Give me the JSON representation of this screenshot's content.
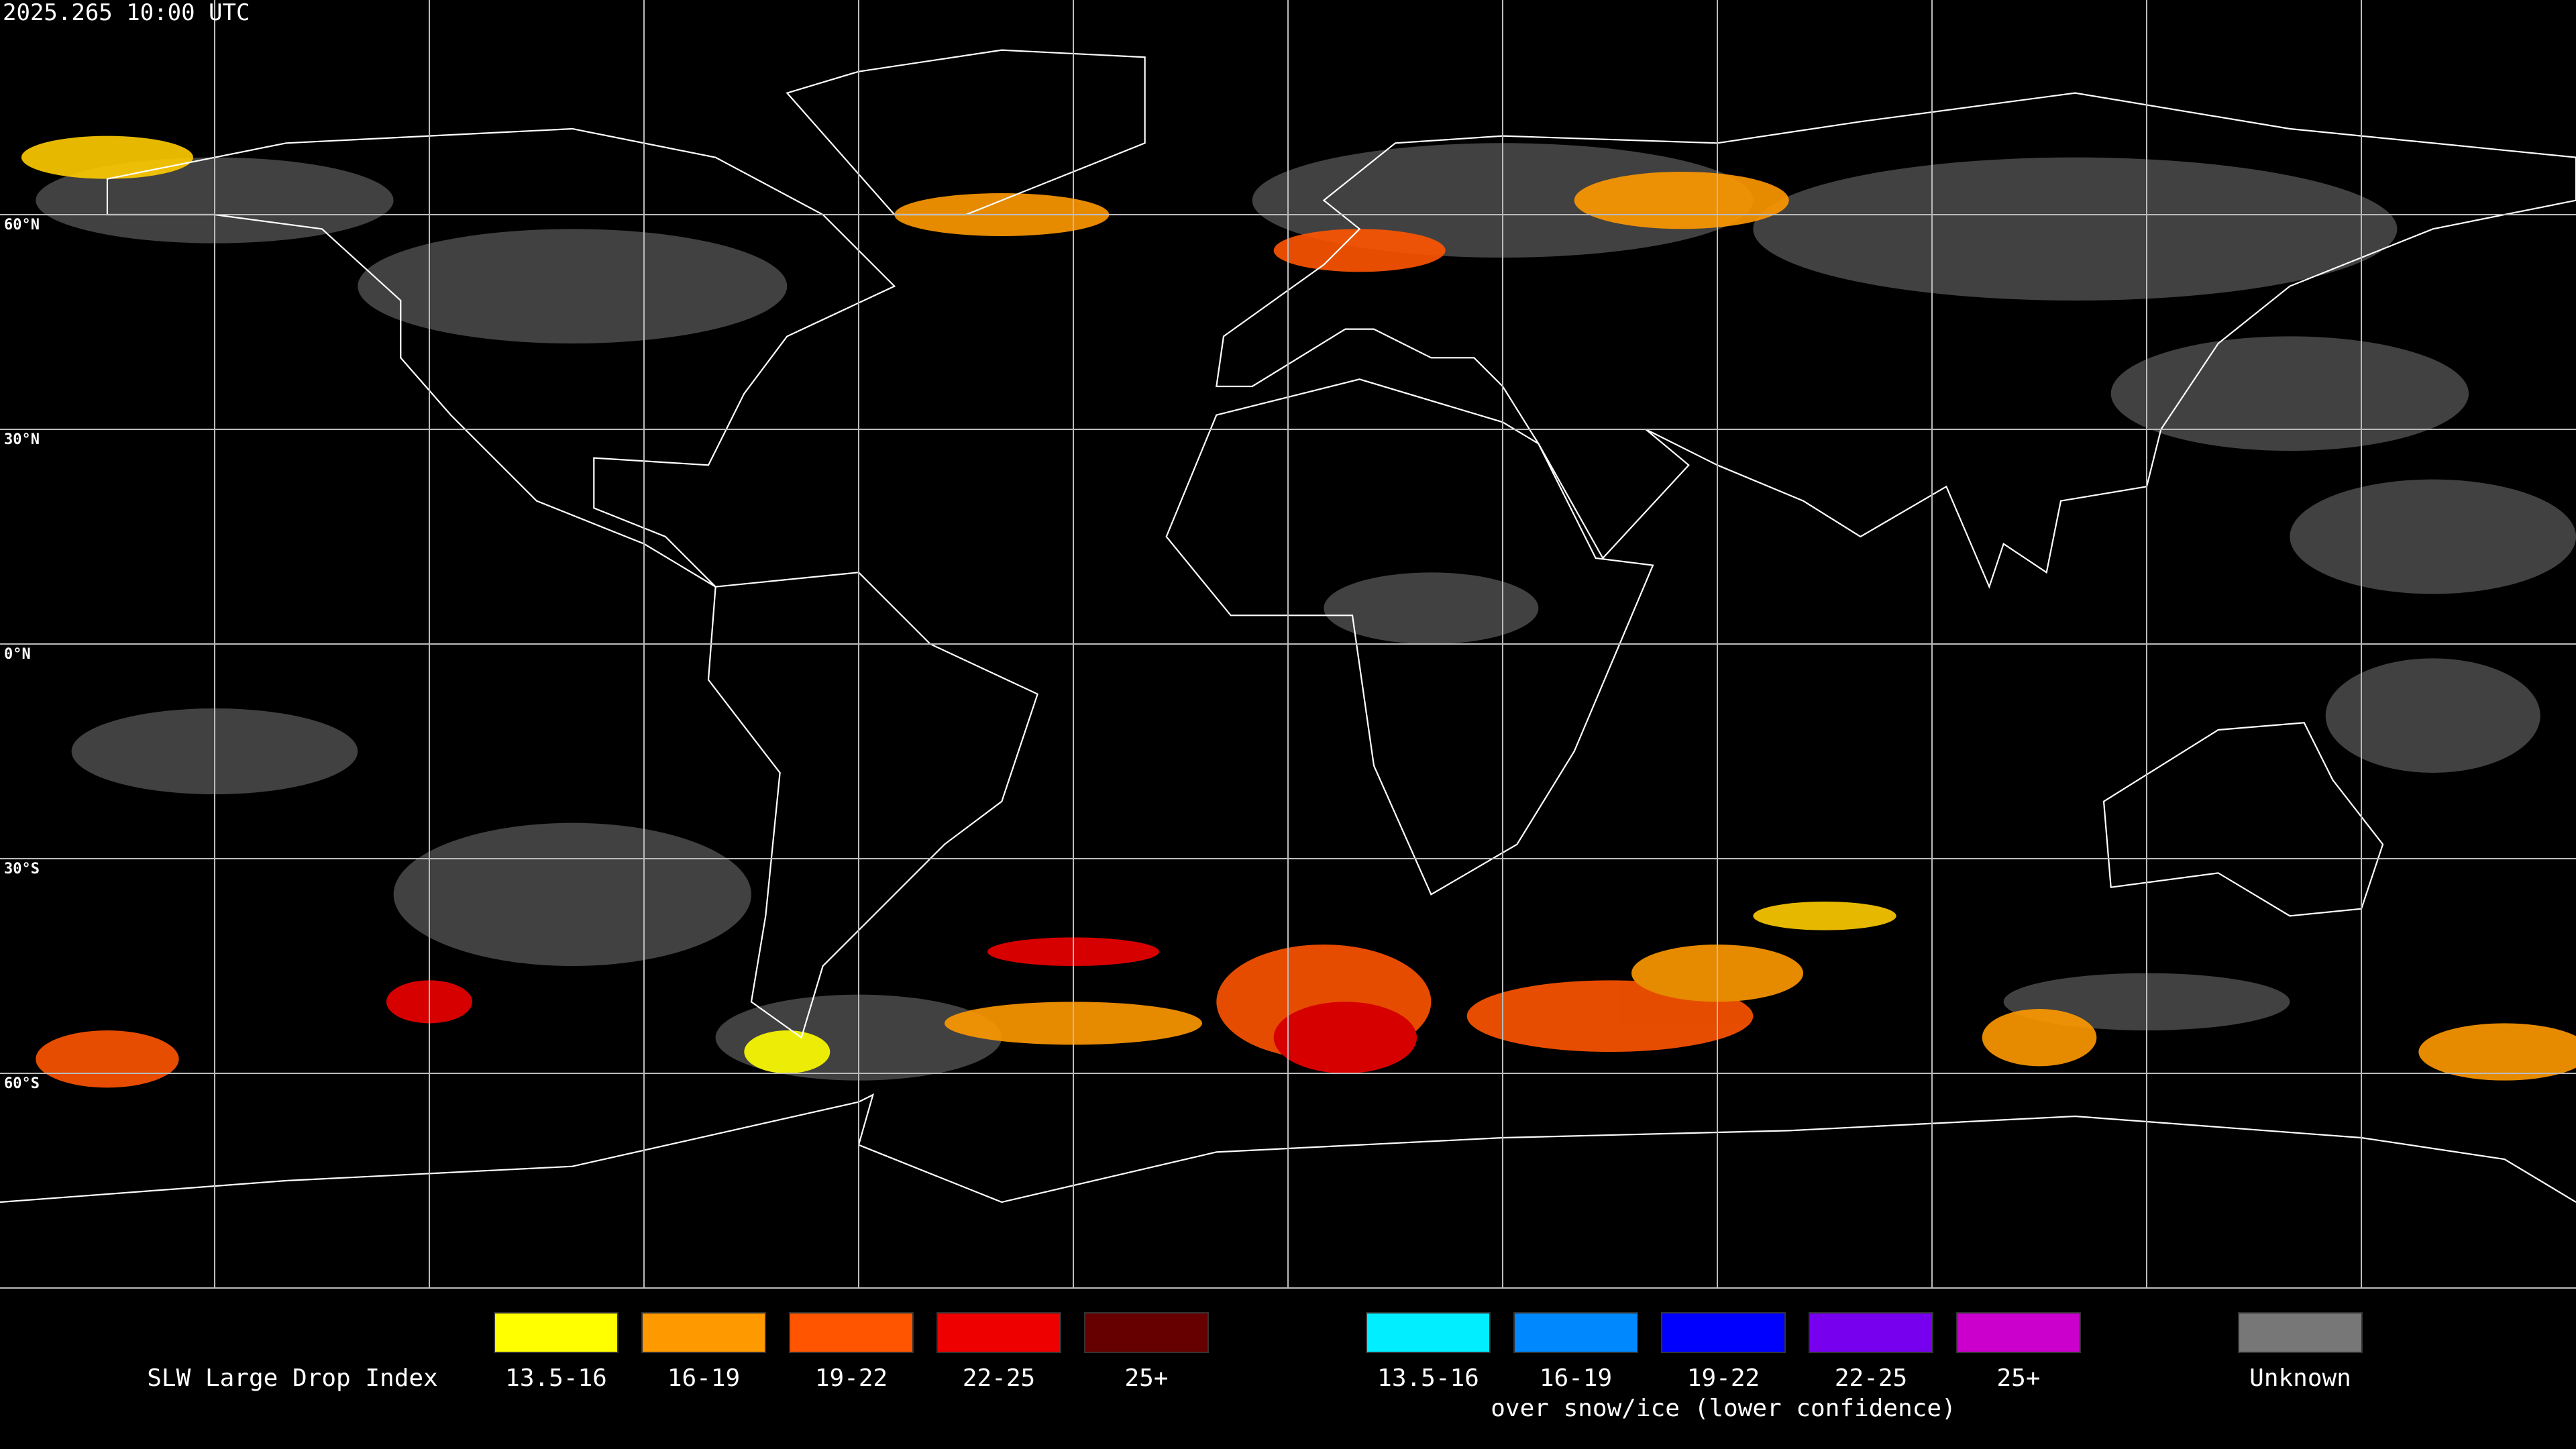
{
  "header": {
    "title": "2025.265 10:00 UTC"
  },
  "map": {
    "lat_labels": [
      "60°N",
      "30°N",
      "0°N",
      "30°S",
      "60°S"
    ]
  },
  "legend": {
    "title": "SLW Large Drop Index",
    "groups": [
      {
        "items": [
          {
            "label": "13.5-16",
            "color": "#ffff00"
          },
          {
            "label": "16-19",
            "color": "#ff9900"
          },
          {
            "label": "19-22",
            "color": "#ff5500"
          },
          {
            "label": "22-25",
            "color": "#ee0000"
          },
          {
            "label": "25+",
            "color": "#660000"
          }
        ]
      },
      {
        "note": "over snow/ice (lower confidence)",
        "items": [
          {
            "label": "13.5-16",
            "color": "#00eeff"
          },
          {
            "label": "16-19",
            "color": "#0088ff"
          },
          {
            "label": "19-22",
            "color": "#0000ff"
          },
          {
            "label": "22-25",
            "color": "#7700ee"
          },
          {
            "label": "25+",
            "color": "#cc00cc"
          }
        ]
      },
      {
        "items": [
          {
            "label": "Unknown",
            "color": "#777777"
          }
        ]
      }
    ]
  }
}
